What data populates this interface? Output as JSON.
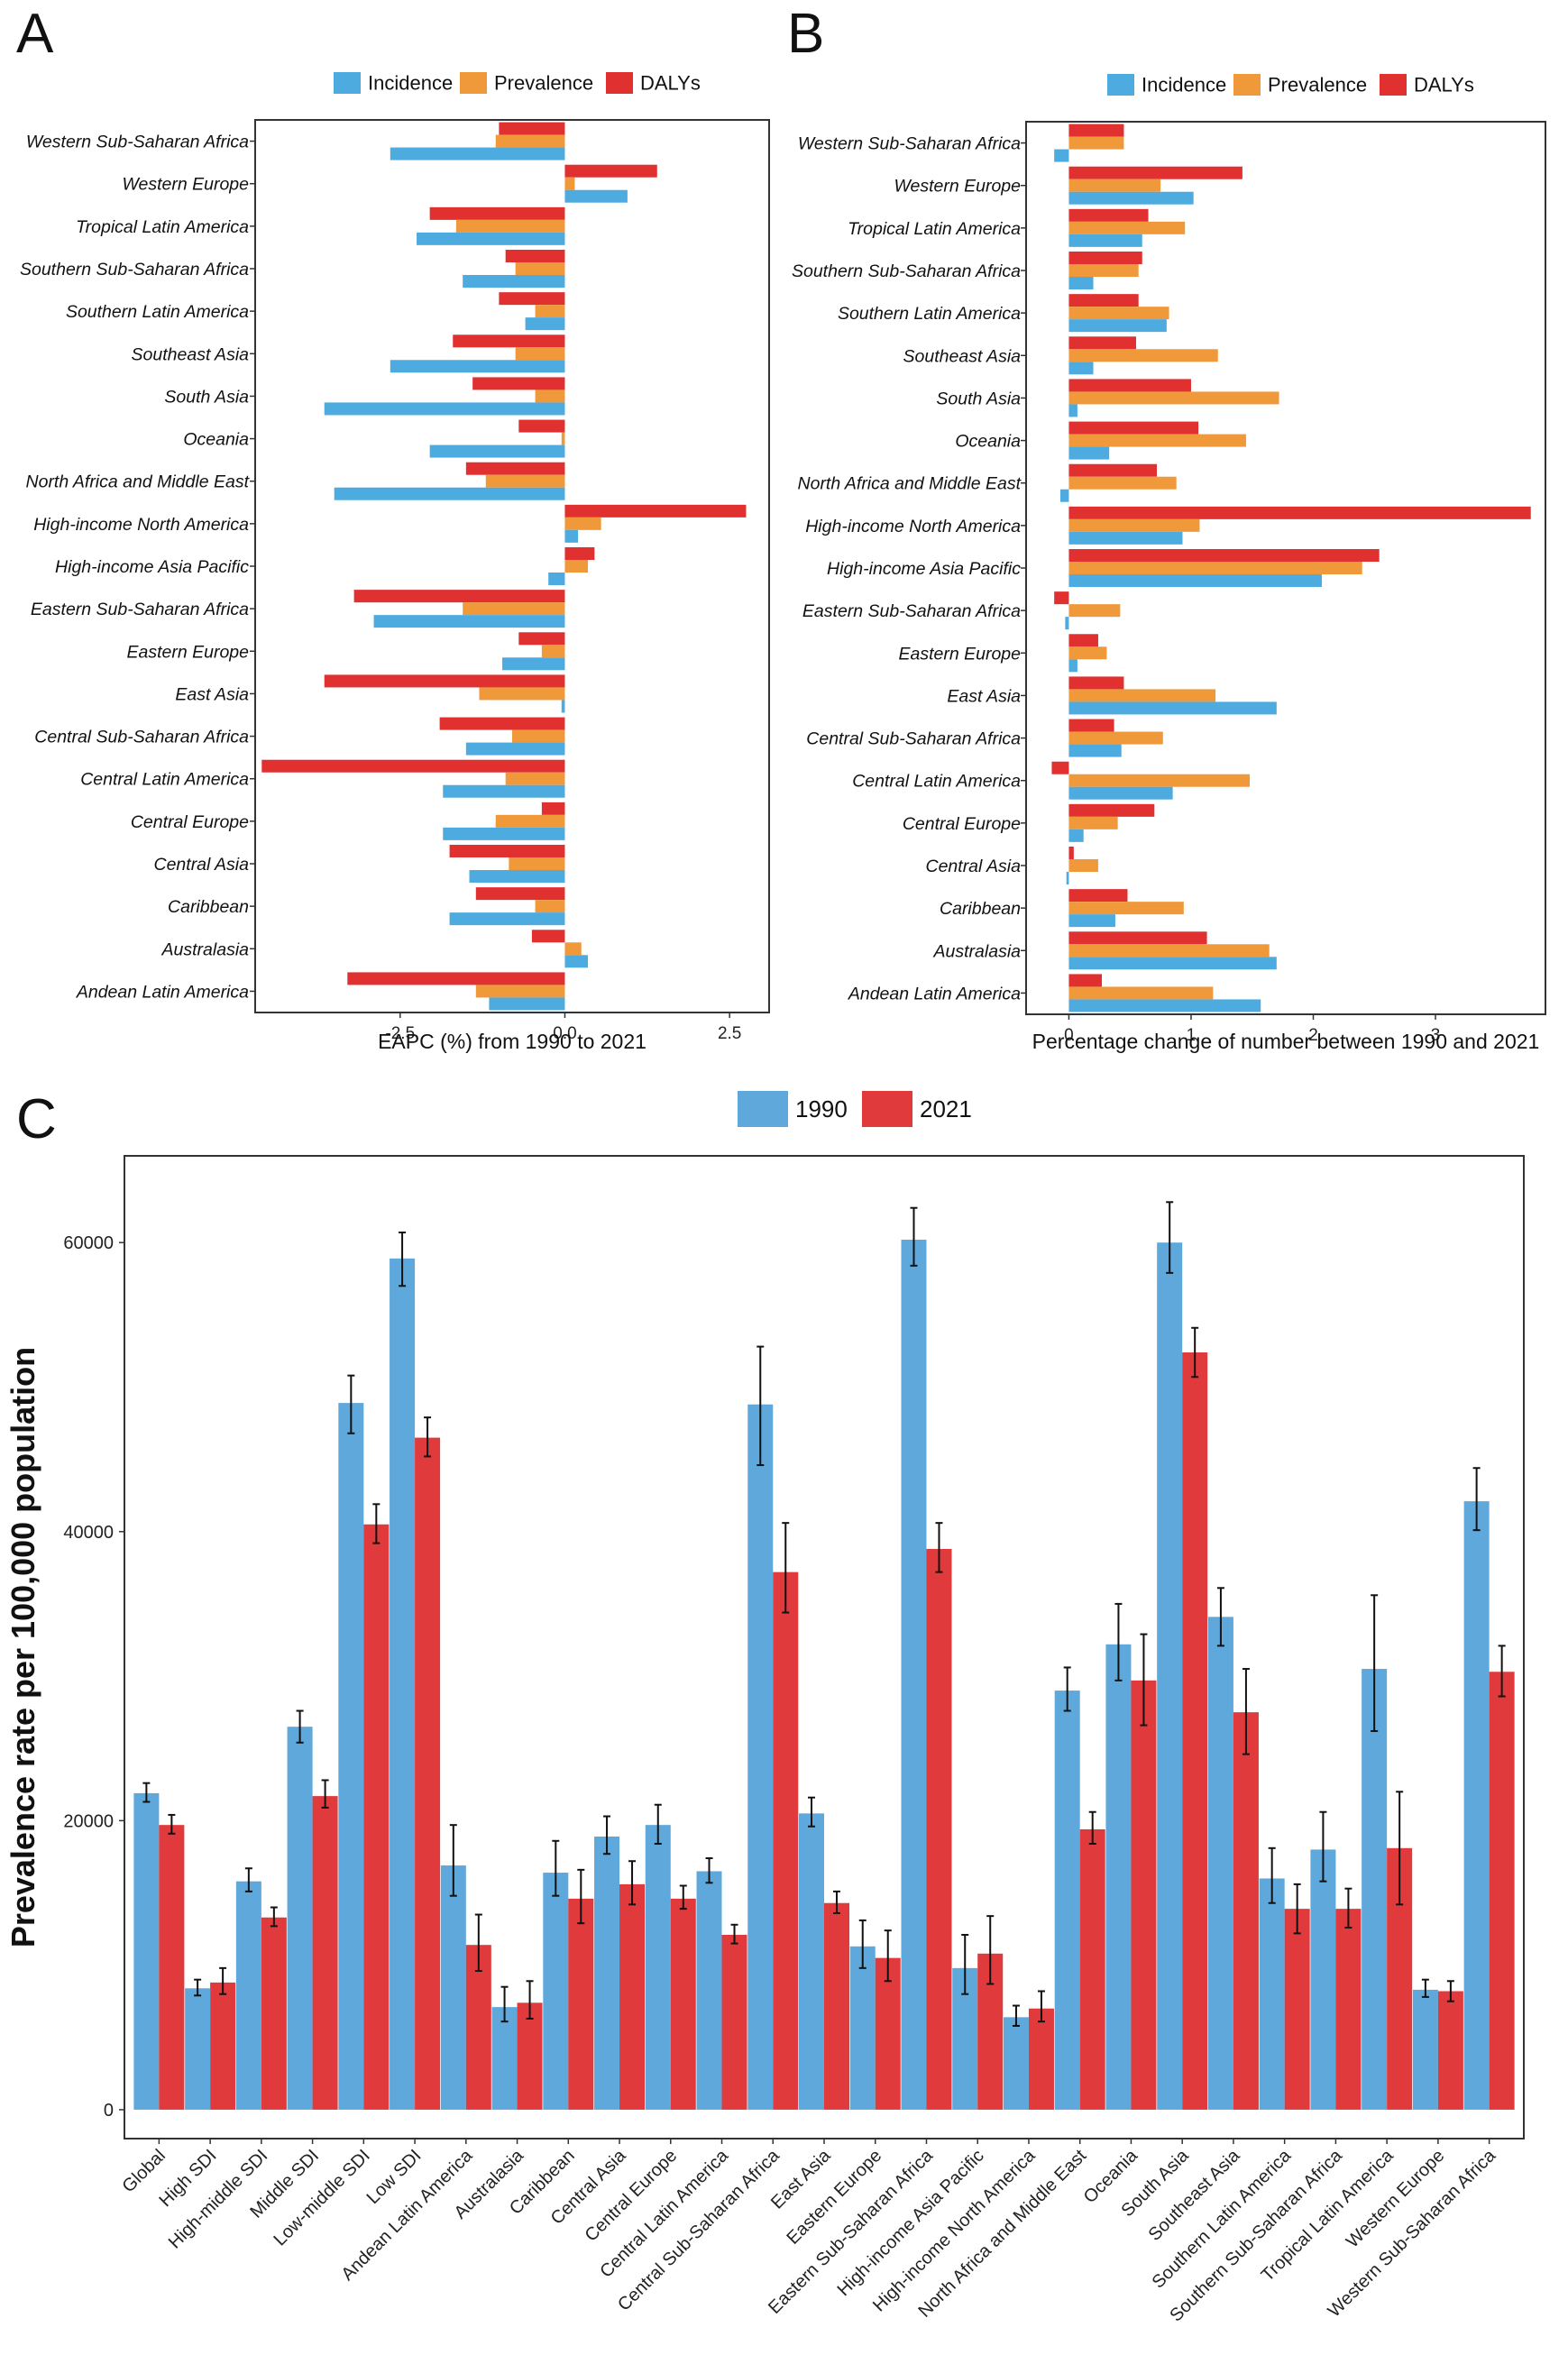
{
  "colors": {
    "incidence": "#4dabe0",
    "prevalence": "#f0993a",
    "dalys": "#e03030",
    "y1990": "#5ea8dc",
    "y2021": "#e03a3c"
  },
  "chart_data": [
    {
      "panel_label": "A",
      "type": "bar",
      "orientation": "horizontal",
      "legend": [
        "Incidence",
        "Prevalence",
        "DALYs"
      ],
      "xlabel": "EAPC (%) from 1990 to 2021",
      "xlim": [
        -4.7,
        3.1
      ],
      "xticks": [
        -2.5,
        0.0,
        2.5
      ],
      "xtick_labels": [
        "-2.5",
        "0.0",
        "2.5"
      ],
      "categories": [
        "Western Sub-Saharan Africa",
        "Western Europe",
        "Tropical Latin America",
        "Southern Sub-Saharan Africa",
        "Southern Latin America",
        "Southeast Asia",
        "South Asia",
        "Oceania",
        "North Africa and Middle East",
        "High-income North America",
        "High-income Asia Pacific",
        "Eastern Sub-Saharan Africa",
        "Eastern Europe",
        "East Asia",
        "Central Sub-Saharan Africa",
        "Central Latin America",
        "Central Europe",
        "Central Asia",
        "Caribbean",
        "Australasia",
        "Andean Latin America"
      ],
      "series": [
        {
          "name": "DALYs",
          "values": [
            -1.0,
            1.4,
            -2.05,
            -0.9,
            -1.0,
            -1.7,
            -1.4,
            -0.7,
            -1.5,
            2.75,
            0.45,
            -3.2,
            -0.7,
            -3.65,
            -1.9,
            -4.6,
            -0.35,
            -1.75,
            -1.35,
            -0.5,
            -3.3
          ]
        },
        {
          "name": "Prevalence",
          "values": [
            -1.05,
            0.15,
            -1.65,
            -0.75,
            -0.45,
            -0.75,
            -0.45,
            -0.05,
            -1.2,
            0.55,
            0.35,
            -1.55,
            -0.35,
            -1.3,
            -0.8,
            -0.9,
            -1.05,
            -0.85,
            -0.45,
            0.25,
            -1.35
          ]
        },
        {
          "name": "Incidence",
          "values": [
            -2.65,
            0.95,
            -2.25,
            -1.55,
            -0.6,
            -2.65,
            -3.65,
            -2.05,
            -3.5,
            0.2,
            -0.25,
            -2.9,
            -0.95,
            -0.05,
            -1.5,
            -1.85,
            -1.85,
            -1.45,
            -1.75,
            0.35,
            -1.15
          ]
        }
      ]
    },
    {
      "panel_label": "B",
      "type": "bar",
      "orientation": "horizontal",
      "legend": [
        "Incidence",
        "Prevalence",
        "DALYs"
      ],
      "xlabel": "Percentage change of number between 1990 and 2021",
      "xlim": [
        -0.35,
        3.9
      ],
      "xticks": [
        0,
        1,
        2,
        3
      ],
      "xtick_labels": [
        "0",
        "1",
        "2",
        "3"
      ],
      "categories": [
        "Western Sub-Saharan Africa",
        "Western Europe",
        "Tropical Latin America",
        "Southern Sub-Saharan Africa",
        "Southern Latin America",
        "Southeast Asia",
        "South Asia",
        "Oceania",
        "North Africa and Middle East",
        "High-income North America",
        "High-income Asia Pacific",
        "Eastern Sub-Saharan Africa",
        "Eastern Europe",
        "East Asia",
        "Central Sub-Saharan Africa",
        "Central Latin America",
        "Central Europe",
        "Central Asia",
        "Caribbean",
        "Australasia",
        "Andean Latin America"
      ],
      "series": [
        {
          "name": "DALYs",
          "values": [
            0.45,
            1.42,
            0.65,
            0.6,
            0.57,
            0.55,
            1.0,
            1.06,
            0.72,
            3.78,
            2.54,
            -0.12,
            0.24,
            0.45,
            0.37,
            -0.14,
            0.7,
            0.04,
            0.48,
            1.13,
            0.27
          ]
        },
        {
          "name": "Prevalence",
          "values": [
            0.45,
            0.75,
            0.95,
            0.57,
            0.82,
            1.22,
            1.72,
            1.45,
            0.88,
            1.07,
            2.4,
            0.42,
            0.31,
            1.2,
            0.77,
            1.48,
            0.4,
            0.24,
            0.94,
            1.64,
            1.18
          ]
        },
        {
          "name": "Incidence",
          "values": [
            -0.12,
            1.02,
            0.6,
            0.2,
            0.8,
            0.2,
            0.07,
            0.33,
            -0.07,
            0.93,
            2.07,
            -0.03,
            0.07,
            1.7,
            0.43,
            0.85,
            0.12,
            -0.02,
            0.38,
            1.7,
            1.57
          ]
        }
      ]
    },
    {
      "panel_label": "C",
      "type": "bar",
      "orientation": "vertical",
      "legend": [
        "1990",
        "2021"
      ],
      "ylabel": "Prevalence rate per 100,000 population",
      "ylim": [
        -2000,
        66000
      ],
      "yticks": [
        0,
        20000,
        40000,
        60000
      ],
      "ytick_labels": [
        "0",
        "20000",
        "40000",
        "60000"
      ],
      "categories": [
        "Global",
        "High SDI",
        "High-middle SDI",
        "Middle SDI",
        "Low-middle SDI",
        "Low SDI",
        "Andean Latin America",
        "Australasia",
        "Caribbean",
        "Central Asia",
        "Central Europe",
        "Central Latin America",
        "Central Sub-Saharan Africa",
        "East Asia",
        "Eastern Europe",
        "Eastern Sub-Saharan Africa",
        "High-income Asia Pacific",
        "High-income North America",
        "North Africa and Middle East",
        "Oceania",
        "South Asia",
        "Southeast Asia",
        "Southern Latin America",
        "Southern Sub-Saharan Africa",
        "Tropical Latin America",
        "Western Europe",
        "Western Sub-Saharan Africa"
      ],
      "series": [
        {
          "name": "1990",
          "values": [
            21900,
            8400,
            15800,
            26500,
            48900,
            58900,
            16900,
            7100,
            16400,
            18900,
            19700,
            16500,
            48800,
            20500,
            11300,
            60200,
            9800,
            6400,
            29000,
            32200,
            60000,
            34100,
            16000,
            18000,
            30500,
            8300,
            42100
          ],
          "error_low": [
            21300,
            7900,
            15100,
            25400,
            46800,
            57000,
            14800,
            6100,
            14800,
            17700,
            18400,
            15700,
            44600,
            19600,
            9800,
            58400,
            8000,
            5800,
            27600,
            29700,
            57900,
            32100,
            14300,
            15800,
            26200,
            7800,
            40100
          ],
          "error_high": [
            22600,
            9000,
            16700,
            27600,
            50800,
            60700,
            19700,
            8500,
            18600,
            20300,
            21100,
            17400,
            52800,
            21600,
            13100,
            62400,
            12100,
            7200,
            30600,
            35000,
            62800,
            36100,
            18100,
            20600,
            35600,
            9000,
            44400
          ]
        },
        {
          "name": "2021",
          "values": [
            19700,
            8800,
            13300,
            21700,
            40500,
            46500,
            11400,
            7400,
            14600,
            15600,
            14600,
            12100,
            37200,
            14300,
            10500,
            38800,
            10800,
            7000,
            19400,
            29700,
            52400,
            27500,
            13900,
            13900,
            18100,
            8200,
            30300
          ],
          "error_low": [
            19100,
            8000,
            12700,
            20900,
            39200,
            45200,
            9600,
            6300,
            12900,
            14200,
            13900,
            11500,
            34400,
            13600,
            8900,
            37200,
            8700,
            6100,
            18400,
            26600,
            50700,
            24600,
            12200,
            12600,
            14200,
            7500,
            28600
          ],
          "error_high": [
            20400,
            9800,
            14000,
            22800,
            41900,
            47900,
            13500,
            8900,
            16600,
            17200,
            15500,
            12800,
            40600,
            15100,
            12400,
            40600,
            13400,
            8200,
            20600,
            32900,
            54100,
            30500,
            15600,
            15300,
            22000,
            8900,
            32100
          ]
        }
      ]
    }
  ]
}
